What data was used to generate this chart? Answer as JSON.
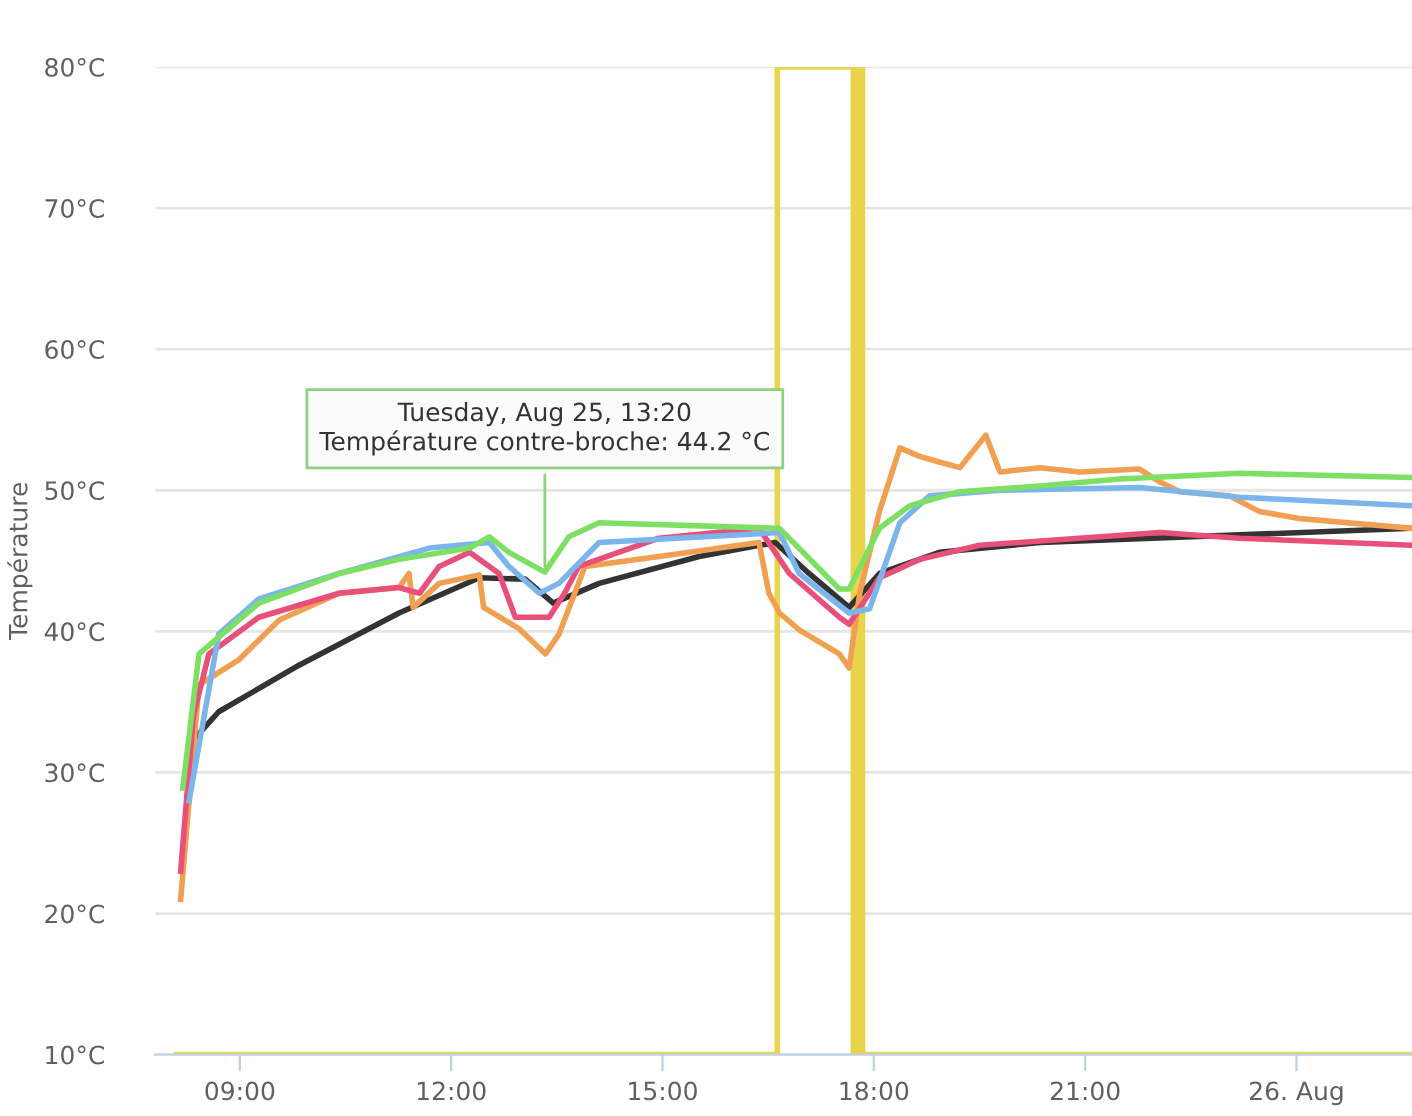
{
  "chart_data": {
    "type": "line",
    "ylabel": "Température",
    "xlim": [
      7.8,
      25.64
    ],
    "ylim": [
      10,
      80
    ],
    "xticks": [
      {
        "value": 9,
        "label": "09:00"
      },
      {
        "value": 12,
        "label": "12:00"
      },
      {
        "value": 15,
        "label": "15:00"
      },
      {
        "value": 18,
        "label": "18:00"
      },
      {
        "value": 21,
        "label": "21:00"
      },
      {
        "value": 24,
        "label": "26. Aug"
      }
    ],
    "yticks": [
      {
        "value": 10,
        "label": "10°C"
      },
      {
        "value": 20,
        "label": "20°C"
      },
      {
        "value": 30,
        "label": "30°C"
      },
      {
        "value": 40,
        "label": "40°C"
      },
      {
        "value": 50,
        "label": "50°C"
      },
      {
        "value": 60,
        "label": "60°C"
      },
      {
        "value": 70,
        "label": "70°C"
      },
      {
        "value": 80,
        "label": "80°C"
      }
    ],
    "grid": "y",
    "legend": false,
    "marker": "none",
    "line_style": "solid",
    "series": [
      {
        "color": "#e8d44d",
        "x": [
          8.1,
          16.63,
          16.63,
          17.71,
          17.71,
          17.74,
          17.74,
          17.77,
          17.77,
          17.8,
          17.8,
          17.84,
          17.84,
          17.87,
          17.87,
          25.64
        ],
        "values": [
          10,
          10,
          80,
          80,
          10,
          10,
          80,
          80,
          10,
          10,
          80,
          80,
          10,
          10,
          10,
          10
        ]
      },
      {
        "color": "#333333",
        "x": [
          8.34,
          8.7,
          9.84,
          11.26,
          12.4,
          13.05,
          13.45,
          14.1,
          15.52,
          16.6,
          17.08,
          17.65,
          18.08,
          18.93,
          20.36,
          25.64
        ],
        "values": [
          32.3,
          34.3,
          37.6,
          41.3,
          43.8,
          43.7,
          42,
          43.4,
          45.3,
          46.3,
          44.1,
          41.7,
          44.1,
          45.6,
          46.3,
          47.3
        ]
      },
      {
        "color": "#f0a050",
        "x": [
          8.16,
          8.42,
          8.99,
          9.56,
          10.41,
          11.26,
          11.4,
          11.46,
          11.83,
          12.4,
          12.46,
          12.96,
          13.34,
          13.53,
          13.9,
          14.95,
          16.37,
          16.51,
          16.66,
          16.94,
          17.51,
          17.65,
          17.8,
          18.08,
          18.37,
          18.65,
          18.93,
          19.22,
          19.59,
          19.79,
          20.36,
          20.92,
          21.77,
          22.06,
          22.34,
          23.05,
          23.47,
          24.04,
          25.64
        ],
        "values": [
          21,
          36.2,
          38,
          40.8,
          42.7,
          43.1,
          44.1,
          41.7,
          43.4,
          44,
          41.7,
          40.2,
          38.4,
          39.8,
          44.6,
          45.3,
          46.3,
          42.7,
          41.3,
          40.1,
          38.4,
          37.4,
          42.7,
          48.5,
          53,
          52.4,
          52,
          51.6,
          53.9,
          51.3,
          51.6,
          51.3,
          51.5,
          50.6,
          49.9,
          49.6,
          48.5,
          48,
          47.3
        ]
      },
      {
        "color": "#e8507a",
        "x": [
          8.16,
          8.34,
          8.56,
          9.27,
          10.41,
          11.26,
          11.55,
          11.83,
          12.26,
          12.68,
          12.91,
          13.39,
          13.61,
          13.81,
          14.95,
          16.37,
          16.8,
          17.51,
          17.65,
          18.08,
          18.65,
          19.5,
          21.21,
          22.06,
          23.19,
          25.64
        ],
        "values": [
          23,
          34,
          38.4,
          41,
          42.7,
          43.1,
          42.7,
          44.6,
          45.6,
          44.1,
          41,
          41,
          42.7,
          44.6,
          46.6,
          47.3,
          44.1,
          41,
          40.5,
          43.8,
          45.1,
          46.1,
          46.7,
          47,
          46.6,
          46.1
        ]
      },
      {
        "color": "#7cb5ec",
        "x": [
          8.28,
          8.7,
          9.27,
          10.41,
          11.69,
          12.54,
          12.82,
          13.25,
          13.53,
          14.1,
          16.66,
          16.94,
          17.65,
          17.94,
          18.37,
          18.79,
          19.79,
          21.77,
          23.19,
          25.64
        ],
        "values": [
          28,
          39.8,
          42.3,
          44.1,
          45.9,
          46.3,
          44.6,
          42.7,
          43.4,
          46.3,
          47,
          44.1,
          41.3,
          41.6,
          47.7,
          49.6,
          50,
          50.2,
          49.5,
          48.9
        ]
      },
      {
        "color": "#7ee063",
        "x": [
          8.19,
          8.42,
          9.27,
          10.41,
          11.26,
          12.26,
          12.54,
          12.82,
          13.33,
          13.67,
          14.1,
          16.66,
          17.51,
          17.65,
          18.08,
          18.51,
          19.22,
          20.36,
          21.49,
          23.19,
          25.64
        ],
        "values": [
          28.9,
          38.4,
          42,
          44.1,
          45.1,
          45.9,
          46.7,
          45.6,
          44.2,
          46.7,
          47.7,
          47.3,
          43,
          43,
          47.3,
          48.9,
          49.9,
          50.3,
          50.8,
          51.2,
          50.9
        ]
      }
    ],
    "annotations": [
      {
        "text": "Tuesday, Aug 25, 13:20\nTempérature contre-broche: 44.2 °C",
        "x": 13.33,
        "y": 44.2
      }
    ]
  }
}
